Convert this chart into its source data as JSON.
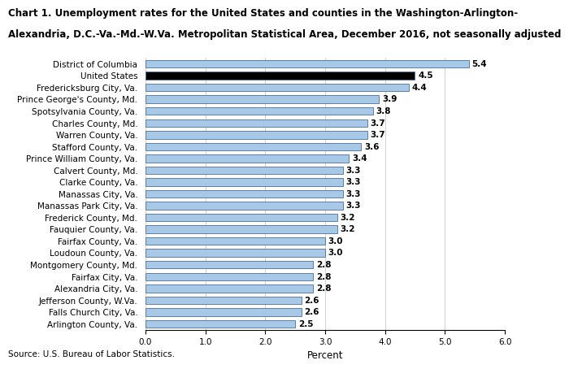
{
  "title_line1": "Chart 1. Unemployment rates for the United States and counties in the Washington-Arlington-",
  "title_line2": "Alexandria, D.C.-Va.-Md.-W.Va. Metropolitan Statistical Area, December 2016, not seasonally adjusted",
  "categories": [
    "Arlington County, Va.",
    "Falls Church City, Va.",
    "Jefferson County, W.Va.",
    "Alexandria City, Va.",
    "Fairfax City, Va.",
    "Montgomery County, Md.",
    "Loudoun County, Va.",
    "Fairfax County, Va.",
    "Fauquier County, Va.",
    "Frederick County, Md.",
    "Manassas Park City, Va.",
    "Manassas City, Va.",
    "Clarke County, Va.",
    "Calvert County, Md.",
    "Prince William County, Va.",
    "Stafford County, Va.",
    "Warren County, Va.",
    "Charles County, Md.",
    "Spotsylvania County, Va.",
    "Prince George's County, Md.",
    "Fredericksburg City, Va.",
    "United States",
    "District of Columbia"
  ],
  "values": [
    2.5,
    2.6,
    2.6,
    2.8,
    2.8,
    2.8,
    3.0,
    3.0,
    3.2,
    3.2,
    3.3,
    3.3,
    3.3,
    3.3,
    3.4,
    3.6,
    3.7,
    3.7,
    3.8,
    3.9,
    4.4,
    4.5,
    5.4
  ],
  "bar_colors": [
    "#a8c8e8",
    "#a8c8e8",
    "#a8c8e8",
    "#a8c8e8",
    "#a8c8e8",
    "#a8c8e8",
    "#a8c8e8",
    "#a8c8e8",
    "#a8c8e8",
    "#a8c8e8",
    "#a8c8e8",
    "#a8c8e8",
    "#a8c8e8",
    "#a8c8e8",
    "#a8c8e8",
    "#a8c8e8",
    "#a8c8e8",
    "#a8c8e8",
    "#a8c8e8",
    "#a8c8e8",
    "#a8c8e8",
    "#000000",
    "#a8c8e8"
  ],
  "xlabel": "Percent",
  "xlim": [
    0,
    6.0
  ],
  "xticks": [
    0.0,
    1.0,
    2.0,
    3.0,
    4.0,
    5.0,
    6.0
  ],
  "source": "Source: U.S. Bureau of Labor Statistics.",
  "bar_edge_color": "#4a7098",
  "label_fontsize": 7.5,
  "title_fontsize": 8.5,
  "tick_fontsize": 7.5,
  "xlabel_fontsize": 8.5,
  "source_fontsize": 7.5,
  "bar_height": 0.65
}
